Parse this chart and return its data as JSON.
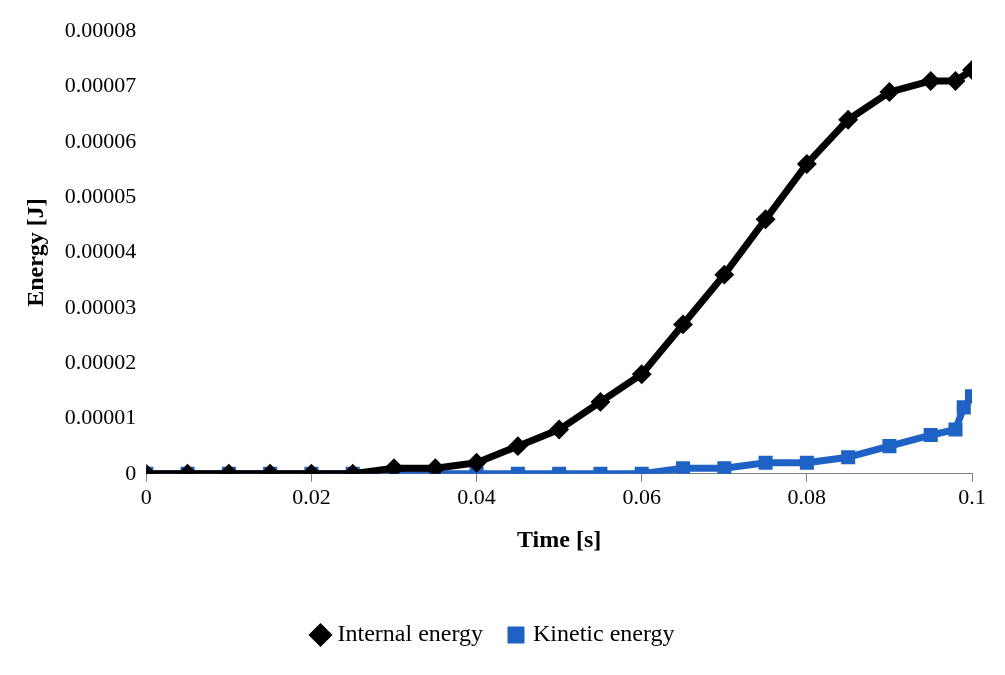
{
  "chart_data": {
    "type": "line",
    "xlabel": "Time [s]",
    "ylabel": "Energy [J]",
    "xlim": [
      0,
      0.1
    ],
    "xticks": [
      0,
      0.02,
      0.04,
      0.06,
      0.08,
      0.1
    ],
    "ylim": [
      0,
      8e-05
    ],
    "yticks": [
      0,
      {
        "value": 1e-05,
        "label": "0.00001"
      },
      {
        "value": 2e-05,
        "label": "0.00002"
      },
      {
        "value": 3e-05,
        "label": "0.00003"
      },
      {
        "value": 4e-05,
        "label": "0.00004"
      },
      {
        "value": 5e-05,
        "label": "0.00005"
      },
      {
        "value": 6e-05,
        "label": "0.00006"
      },
      {
        "value": 7e-05,
        "label": "0.00007"
      },
      {
        "value": 8e-05,
        "label": "0.00008"
      }
    ],
    "grid": false,
    "legend": "bottom",
    "series": [
      {
        "name": "Internal energy",
        "color": "#000000",
        "marker": "diamond",
        "x": [
          0,
          0.005,
          0.01,
          0.015,
          0.02,
          0.025,
          0.03,
          0.035,
          0.04,
          0.045,
          0.05,
          0.055,
          0.06,
          0.065,
          0.07,
          0.075,
          0.08,
          0.085,
          0.09,
          0.095,
          0.098,
          0.1
        ],
        "values": [
          0,
          0,
          0,
          0,
          0,
          0,
          1e-06,
          1e-06,
          2e-06,
          5e-06,
          8e-06,
          1.3e-05,
          1.8e-05,
          2.7e-05,
          3.6e-05,
          4.6e-05,
          5.6e-05,
          6.4e-05,
          6.9e-05,
          7.1e-05,
          7.1e-05,
          7.3e-05
        ]
      },
      {
        "name": "Kinetic energy",
        "color": "#1f62c6",
        "marker": "square",
        "x": [
          0,
          0.005,
          0.01,
          0.015,
          0.02,
          0.025,
          0.03,
          0.035,
          0.04,
          0.045,
          0.05,
          0.055,
          0.06,
          0.065,
          0.07,
          0.075,
          0.08,
          0.085,
          0.09,
          0.095,
          0.098,
          0.099,
          0.1
        ],
        "values": [
          0,
          0,
          0,
          0,
          0,
          0,
          0,
          0,
          0,
          0,
          0,
          0,
          0,
          1e-06,
          1e-06,
          2e-06,
          2e-06,
          3e-06,
          5e-06,
          7e-06,
          8e-06,
          1.2e-05,
          1.4e-05
        ]
      }
    ]
  }
}
